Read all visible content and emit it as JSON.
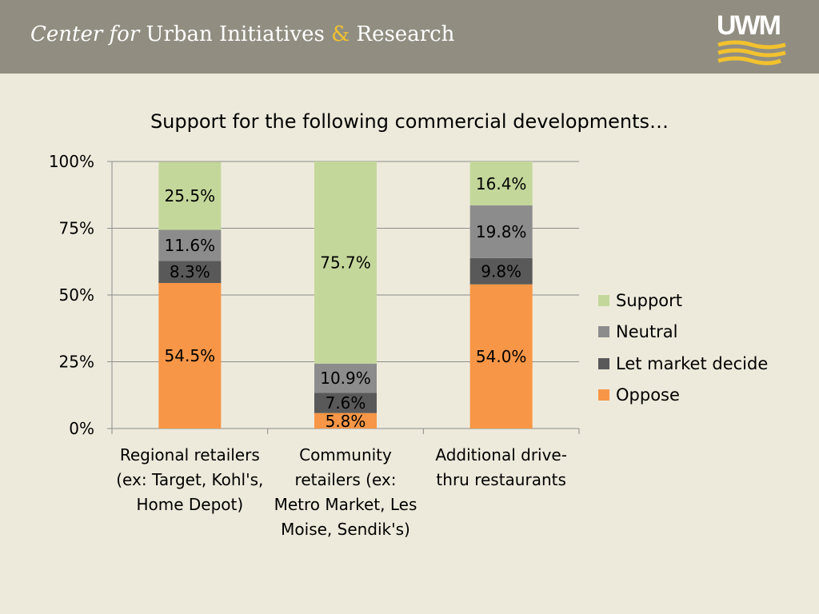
{
  "header": {
    "title_prefix": "Center for",
    "title_main": "Urban Initiatives",
    "title_amp": "&",
    "title_end": "Research",
    "logo_text": "UWM"
  },
  "chart_data": {
    "type": "bar",
    "stacked": true,
    "title": "Support for the following commercial developments…",
    "categories": [
      [
        "Regional retailers",
        "(ex: Target, Kohl's,",
        "Home Depot)"
      ],
      [
        "Community",
        "retailers (ex:",
        "Metro Market, Les",
        "Moise, Sendik's)"
      ],
      [
        "Additional drive-",
        "thru restaurants"
      ]
    ],
    "series": [
      {
        "name": "Oppose",
        "color": "#f79646",
        "values": [
          54.5,
          5.8,
          54.0
        ],
        "labels": [
          "54.5%",
          "5.8%",
          "54.0%"
        ]
      },
      {
        "name": "Let market decide",
        "color": "#595959",
        "values": [
          8.3,
          7.6,
          9.8
        ],
        "labels": [
          "8.3%",
          "7.6%",
          "9.8%"
        ]
      },
      {
        "name": "Neutral",
        "color": "#8c8c8c",
        "values": [
          11.6,
          10.9,
          19.8
        ],
        "labels": [
          "11.6%",
          "10.9%",
          "19.8%"
        ]
      },
      {
        "name": "Support",
        "color": "#c4d79b",
        "values": [
          25.5,
          75.7,
          16.4
        ],
        "labels": [
          "25.5%",
          "75.7%",
          "16.4%"
        ]
      }
    ],
    "ylim": [
      0,
      100
    ],
    "yticks": [
      0,
      25,
      50,
      75,
      100
    ],
    "ytick_labels": [
      "0%",
      "25%",
      "50%",
      "75%",
      "100%"
    ],
    "legend_position": "right",
    "legend_order": [
      "Support",
      "Neutral",
      "Let market decide",
      "Oppose"
    ],
    "grid": true
  }
}
